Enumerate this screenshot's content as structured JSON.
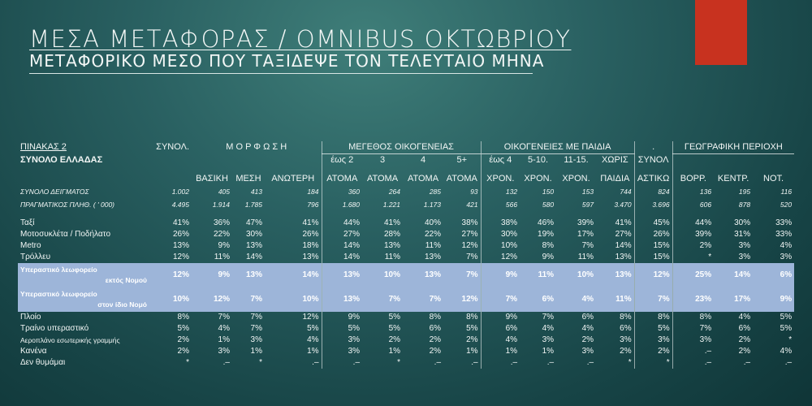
{
  "title": "ΜΕΣΑ ΜΕΤΑΦΟΡΑΣ / OMNIBUS ΟΚΤΩΒΡΙΟΥ",
  "subtitle": "ΜΕΤΑΦΟΡΙΚΟ ΜΕΣΟ ΠΟΥ ΤΑΞΙΔΕΨΕ ΤΟΝ ΤΕΛΕΥΤΑΙΟ ΜΗΝΑ",
  "colors": {
    "accent_red": "#c8321f",
    "highlight_row": "#9db5d9",
    "background": "#1f5455"
  },
  "table": {
    "label_line1": "ΠΙΝΑΚΑΣ 2",
    "label_line2": "ΣΥΝΟΛΟ ΕΛΛΑΔΑΣ",
    "group_headers": {
      "total": "ΣΥΝΟΛ.",
      "education": "Μ Ο Ρ Φ Ω Σ Η",
      "family_size": "ΜΕΓΕΘΟΣ ΟΙΚΟΓΕΝΕΙΑΣ",
      "children": "ΟΙΚΟΓΕΝΕΙΕΣ ΜΕ ΠΑΙΔΙΑ",
      "dot": ".",
      "region": "ΓΕΩΓΡΑΦΙΚΗ ΠΕΡΙΟΧΗ"
    },
    "sub_headers_top": [
      "",
      "",
      "",
      "",
      "έως 2",
      "3",
      "4",
      "5+",
      "έως 4",
      "5-10.",
      "11-15.",
      "ΧΩΡΙΣ",
      "ΣΥΝΟΛ",
      "",
      "",
      ""
    ],
    "sub_headers_bottom": [
      "",
      "ΒΑΣΙΚΗ",
      "ΜΕΣΗ",
      "ΑΝΩΤΕΡΗ",
      "ΑΤΟΜΑ",
      "ΑΤΟΜΑ",
      "ΑΤΟΜΑ",
      "ΑΤΟΜΑ",
      "ΧΡΟΝ.",
      "ΧΡΟΝ.",
      "ΧΡΟΝ.",
      "ΠΑΙΔΙΑ",
      "ΑΣΤΙΚΩ",
      "ΒΟΡΡ.",
      "ΚΕΝΤΡ.",
      "ΝΟΤ."
    ],
    "sample_rows": [
      {
        "label": "ΣΥΝΟΛΟ ΔΕΙΓΜΑΤΟΣ",
        "values": [
          "1.002",
          "405",
          "413",
          "184",
          "360",
          "264",
          "285",
          "93",
          "132",
          "150",
          "153",
          "744",
          "824",
          "136",
          "195",
          "116"
        ]
      },
      {
        "label": "ΠΡΑΓΜΑΤΙΚΟΣ ΠΛΗΘ. ( ' 000)",
        "values": [
          "4.495",
          "1.914",
          "1.785",
          "796",
          "1.680",
          "1.221",
          "1.173",
          "421",
          "566",
          "580",
          "597",
          "3.470",
          "3.696",
          "606",
          "878",
          "520"
        ]
      }
    ],
    "rows_a": [
      {
        "label": "Ταξί",
        "values": [
          "41%",
          "36%",
          "47%",
          "41%",
          "44%",
          "41%",
          "40%",
          "38%",
          "38%",
          "46%",
          "39%",
          "41%",
          "45%",
          "44%",
          "30%",
          "33%"
        ]
      },
      {
        "label": "Μοτοσυκλέτα / Ποδήλατο",
        "values": [
          "26%",
          "22%",
          "30%",
          "26%",
          "27%",
          "28%",
          "22%",
          "27%",
          "30%",
          "19%",
          "17%",
          "27%",
          "26%",
          "39%",
          "31%",
          "33%"
        ]
      },
      {
        "label": "Metro",
        "values": [
          "13%",
          "9%",
          "13%",
          "18%",
          "14%",
          "13%",
          "11%",
          "12%",
          "10%",
          "8%",
          "7%",
          "14%",
          "15%",
          "2%",
          "3%",
          "4%"
        ]
      },
      {
        "label": "Τρόλλευ",
        "values": [
          "12%",
          "11%",
          "14%",
          "13%",
          "14%",
          "11%",
          "13%",
          "7%",
          "12%",
          "9%",
          "11%",
          "13%",
          "15%",
          "*",
          "3%",
          "3%"
        ]
      }
    ],
    "highlight_rows": [
      {
        "label_line1": "Υπεραστικό λεωφορείο",
        "label_line2": "εκτός Νομού",
        "values": [
          "12%",
          "9%",
          "13%",
          "14%",
          "13%",
          "10%",
          "13%",
          "7%",
          "9%",
          "11%",
          "10%",
          "13%",
          "12%",
          "25%",
          "14%",
          "6%"
        ]
      },
      {
        "label_line1": "Υπεραστικό λεωφορείο",
        "label_line2": "στον ίδιο Νομό",
        "values": [
          "10%",
          "12%",
          "7%",
          "10%",
          "13%",
          "7%",
          "7%",
          "12%",
          "7%",
          "6%",
          "4%",
          "11%",
          "7%",
          "23%",
          "17%",
          "9%"
        ]
      }
    ],
    "rows_b": [
      {
        "label": "Πλοίο",
        "values": [
          "8%",
          "7%",
          "7%",
          "12%",
          "9%",
          "5%",
          "8%",
          "8%",
          "9%",
          "7%",
          "6%",
          "8%",
          "8%",
          "8%",
          "4%",
          "5%"
        ]
      },
      {
        "label": "Τραίνο υπεραστικό",
        "values": [
          "5%",
          "4%",
          "7%",
          "5%",
          "5%",
          "5%",
          "6%",
          "5%",
          "6%",
          "4%",
          "4%",
          "6%",
          "5%",
          "7%",
          "6%",
          "5%"
        ]
      },
      {
        "label": "Αεροπλάνο εσωτερικής γραμμής",
        "values": [
          "2%",
          "1%",
          "3%",
          "4%",
          "3%",
          "2%",
          "2%",
          "2%",
          "4%",
          "3%",
          "2%",
          "3%",
          "3%",
          "3%",
          "2%",
          "*"
        ]
      },
      {
        "label": "Κανένα",
        "values": [
          "2%",
          "3%",
          "1%",
          "1%",
          "3%",
          "1%",
          "2%",
          "1%",
          "1%",
          "1%",
          "3%",
          "2%",
          "2%",
          ".–",
          "2%",
          "4%"
        ]
      },
      {
        "label": "Δεν θυμάμαι",
        "values": [
          "*",
          ".–",
          "*",
          ".–",
          ".–",
          "*",
          ".–",
          ".–",
          ".–",
          ".–",
          ".–",
          "*",
          "*",
          ".–",
          ".–",
          ".–"
        ]
      }
    ]
  }
}
